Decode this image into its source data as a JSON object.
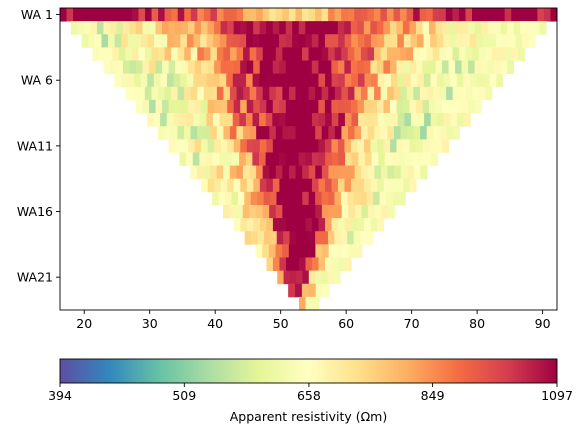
{
  "chart_data": {
    "type": "heatmap",
    "description": "Pseudosection (inverted triangle) of apparent resistivity; x = electrode position, y = Wenner-alpha level",
    "x_ticks": [
      20,
      30,
      40,
      50,
      60,
      70,
      80,
      90
    ],
    "xlim": [
      16.3,
      92.2
    ],
    "y_ticks": [
      "WA 1",
      "WA 6",
      "WA11",
      "WA16",
      "WA21"
    ],
    "y_tick_levels": [
      1,
      6,
      11,
      16,
      21
    ],
    "levels": 23,
    "x_min_level1": 16.3,
    "x_max_level1": 92.2,
    "x_min_last_level": 52.8,
    "x_max_last_level": 55.8,
    "colorbar": {
      "label": "Apparent resistivity (Ωm)",
      "tick_labels": [
        "394",
        "509",
        "658",
        "849",
        "1097"
      ],
      "scale": "log",
      "range": [
        394,
        1097
      ],
      "colormap": "Spectral_r"
    }
  }
}
